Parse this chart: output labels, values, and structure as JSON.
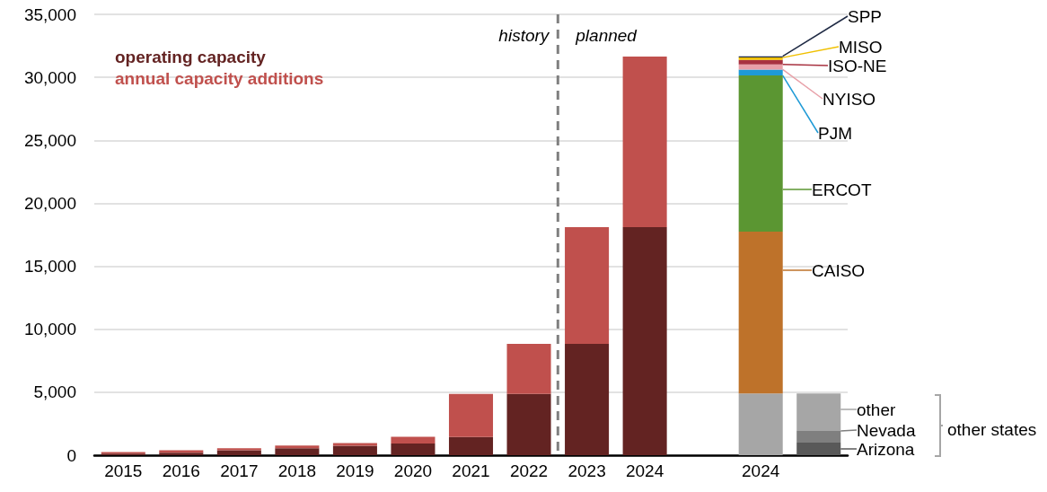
{
  "chart_data": {
    "type": "bar",
    "stacked": true,
    "categories": [
      "2015",
      "2016",
      "2017",
      "2018",
      "2019",
      "2020",
      "2021",
      "2022",
      "2023",
      "2024",
      null,
      "2024",
      null
    ],
    "ylim": [
      0,
      35000
    ],
    "yticks": [
      {
        "value": 0,
        "label": "0"
      },
      {
        "value": 5000,
        "label": "5,000"
      },
      {
        "value": 10000,
        "label": "10,000"
      },
      {
        "value": 15000,
        "label": "15,000"
      },
      {
        "value": 20000,
        "label": "20,000"
      },
      {
        "value": 25000,
        "label": "25,000"
      },
      {
        "value": 30000,
        "label": "30,000"
      },
      {
        "value": 35000,
        "label": "35,000"
      }
    ],
    "grid": "y",
    "legend": "right",
    "series": [
      {
        "name": "operating capacity",
        "color": "#632322",
        "values": [
          130,
          200,
          400,
          550,
          740,
          920,
          1440,
          4870,
          8840,
          18100,
          null,
          null,
          null
        ]
      },
      {
        "name": "annual capacity additions",
        "color": "#c0504d",
        "values": [
          120,
          200,
          150,
          220,
          230,
          540,
          3430,
          3970,
          9260,
          13550,
          null,
          null,
          null
        ]
      },
      {
        "name": "other states",
        "color": "#a6a6a6",
        "values": [
          null,
          null,
          null,
          null,
          null,
          null,
          null,
          null,
          null,
          null,
          null,
          4900,
          null
        ]
      },
      {
        "name": "CAISO",
        "color": "#be722a",
        "values": [
          null,
          null,
          null,
          null,
          null,
          null,
          null,
          null,
          null,
          null,
          null,
          12850,
          null
        ]
      },
      {
        "name": "ERCOT",
        "color": "#5b9632",
        "values": [
          null,
          null,
          null,
          null,
          null,
          null,
          null,
          null,
          null,
          null,
          null,
          12400,
          null
        ]
      },
      {
        "name": "PJM",
        "color": "#1e9ad6",
        "values": [
          null,
          null,
          null,
          null,
          null,
          null,
          null,
          null,
          null,
          null,
          null,
          470,
          null
        ]
      },
      {
        "name": "NYISO",
        "color": "#e8a0a8",
        "values": [
          null,
          null,
          null,
          null,
          null,
          null,
          null,
          null,
          null,
          null,
          null,
          400,
          null
        ]
      },
      {
        "name": "ISO-NE",
        "color": "#a83240",
        "values": [
          null,
          null,
          null,
          null,
          null,
          null,
          null,
          null,
          null,
          null,
          null,
          360,
          null
        ]
      },
      {
        "name": "MISO",
        "color": "#f0c000",
        "values": [
          null,
          null,
          null,
          null,
          null,
          null,
          null,
          null,
          null,
          null,
          null,
          190,
          null
        ]
      },
      {
        "name": "SPP",
        "color": "#1f2a44",
        "values": [
          null,
          null,
          null,
          null,
          null,
          null,
          null,
          null,
          null,
          null,
          null,
          100,
          null
        ]
      },
      {
        "name": "Arizona",
        "color": "#595959",
        "values": [
          null,
          null,
          null,
          null,
          null,
          null,
          null,
          null,
          null,
          null,
          null,
          null,
          1000
        ]
      },
      {
        "name": "Nevada",
        "color": "#7f7f7f",
        "values": [
          null,
          null,
          null,
          null,
          null,
          null,
          null,
          null,
          null,
          null,
          null,
          null,
          920
        ]
      },
      {
        "name": "other",
        "color": "#a6a6a6",
        "values": [
          null,
          null,
          null,
          null,
          null,
          null,
          null,
          null,
          null,
          null,
          null,
          null,
          2980
        ]
      }
    ],
    "ref_lines": [
      {
        "axis": "x",
        "value": "2023",
        "line_style": "dashed",
        "color": "#808080"
      }
    ],
    "annotations": [
      "history",
      "planned"
    ]
  }
}
